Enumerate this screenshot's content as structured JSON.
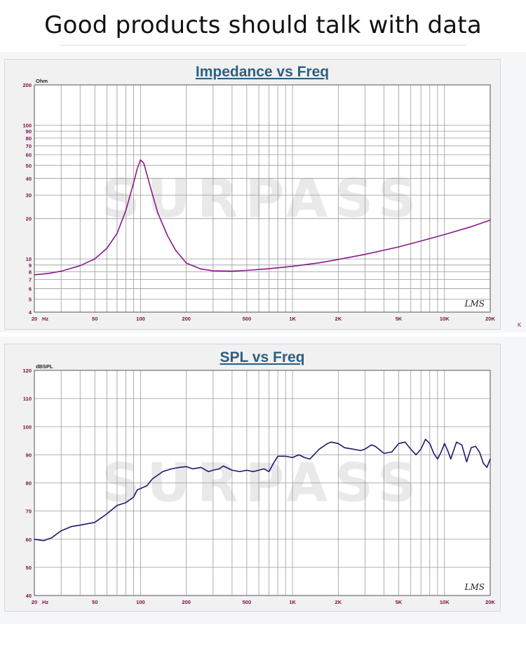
{
  "page": {
    "title": "Good products should talk with data"
  },
  "charts_meta": {
    "watermark": "SURPASS",
    "badge": "LMS",
    "stray_label": "K",
    "grid_color": "#9a9a9a",
    "axis_label_color": "#7a1040",
    "title_color": "#2f5f7f"
  },
  "chart_data": [
    {
      "type": "line",
      "title": "Impedance vs Freq",
      "ylabel": "Ohm",
      "xlabel": "Hz",
      "xscale": "log",
      "yscale": "log",
      "xlim": [
        20,
        20000
      ],
      "ylim": [
        4,
        200
      ],
      "xtick_labels": [
        {
          "v": 20,
          "t": "20"
        },
        {
          "v": 50,
          "t": "50"
        },
        {
          "v": 100,
          "t": "100"
        },
        {
          "v": 200,
          "t": "200"
        },
        {
          "v": 500,
          "t": "500"
        },
        {
          "v": 1000,
          "t": "1K"
        },
        {
          "v": 2000,
          "t": "2K"
        },
        {
          "v": 5000,
          "t": "5K"
        },
        {
          "v": 10000,
          "t": "10K"
        },
        {
          "v": 20000,
          "t": "20K"
        }
      ],
      "ytick_labels": [
        {
          "v": 200,
          "t": "200"
        },
        {
          "v": 100,
          "t": "100"
        },
        {
          "v": 90,
          "t": "90"
        },
        {
          "v": 80,
          "t": "80"
        },
        {
          "v": 70,
          "t": "70"
        },
        {
          "v": 60,
          "t": "60"
        },
        {
          "v": 50,
          "t": "50"
        },
        {
          "v": 40,
          "t": "40"
        },
        {
          "v": 30,
          "t": "30"
        },
        {
          "v": 20,
          "t": "20"
        },
        {
          "v": 10,
          "t": "10"
        },
        {
          "v": 9,
          "t": "9"
        },
        {
          "v": 8,
          "t": "8"
        },
        {
          "v": 7,
          "t": "7"
        },
        {
          "v": 6,
          "t": "6"
        },
        {
          "v": 5,
          "t": "5"
        },
        {
          "v": 4,
          "t": "4"
        }
      ],
      "grid": true,
      "series": [
        {
          "color": "#8a1a8a",
          "x": [
            20,
            25,
            30,
            40,
            50,
            60,
            70,
            80,
            90,
            95,
            100,
            105,
            110,
            120,
            130,
            150,
            170,
            200,
            250,
            300,
            400,
            500,
            700,
            1000,
            1500,
            2000,
            3000,
            5000,
            7000,
            10000,
            15000,
            20000
          ],
          "y": [
            7.6,
            7.8,
            8.1,
            8.9,
            10.0,
            12.0,
            15.5,
            23.0,
            37.0,
            47.0,
            55.0,
            52.0,
            43.0,
            30.0,
            22.0,
            15.0,
            11.6,
            9.3,
            8.4,
            8.15,
            8.1,
            8.2,
            8.45,
            8.8,
            9.35,
            9.9,
            10.8,
            12.3,
            13.6,
            15.2,
            17.4,
            19.5
          ]
        }
      ]
    },
    {
      "type": "line",
      "title": "SPL vs Freq",
      "ylabel": "dBSPL",
      "xlabel": "Hz",
      "xscale": "log",
      "xlim": [
        20,
        20000
      ],
      "ylim": [
        40,
        120
      ],
      "xtick_labels": [
        {
          "v": 20,
          "t": "20"
        },
        {
          "v": 50,
          "t": "50"
        },
        {
          "v": 100,
          "t": "100"
        },
        {
          "v": 200,
          "t": "200"
        },
        {
          "v": 500,
          "t": "500"
        },
        {
          "v": 1000,
          "t": "1K"
        },
        {
          "v": 2000,
          "t": "2K"
        },
        {
          "v": 5000,
          "t": "5K"
        },
        {
          "v": 10000,
          "t": "10K"
        },
        {
          "v": 20000,
          "t": "20K"
        }
      ],
      "ytick_labels": [
        {
          "v": 120,
          "t": "120"
        },
        {
          "v": 110,
          "t": "110"
        },
        {
          "v": 100,
          "t": "100"
        },
        {
          "v": 90,
          "t": "90"
        },
        {
          "v": 80,
          "t": "80"
        },
        {
          "v": 70,
          "t": "70"
        },
        {
          "v": 60,
          "t": "60"
        },
        {
          "v": 50,
          "t": "50"
        },
        {
          "v": 40,
          "t": "40"
        }
      ],
      "grid": true,
      "series": [
        {
          "color": "#1a1a6e",
          "x": [
            20,
            23,
            26,
            30,
            35,
            40,
            50,
            60,
            70,
            80,
            90,
            95,
            100,
            110,
            120,
            140,
            160,
            180,
            200,
            220,
            250,
            280,
            300,
            330,
            350,
            400,
            450,
            500,
            550,
            600,
            650,
            700,
            750,
            800,
            900,
            1000,
            1100,
            1200,
            1300,
            1500,
            1700,
            1800,
            2000,
            2200,
            2500,
            2800,
            3000,
            3300,
            3500,
            4000,
            4500,
            5000,
            5500,
            6000,
            6500,
            7000,
            7500,
            8000,
            8500,
            9000,
            9500,
            10000,
            10500,
            11000,
            12000,
            13000,
            14000,
            15000,
            16000,
            17000,
            18000,
            19000,
            20000
          ],
          "y": [
            60,
            59.5,
            60.5,
            63,
            64.5,
            65,
            66,
            69,
            72,
            73,
            75,
            77.5,
            78,
            79,
            81.5,
            84,
            85,
            85.5,
            85.8,
            85,
            85.5,
            84,
            84.5,
            85,
            86,
            84.5,
            84,
            84.5,
            84,
            84.5,
            85,
            84,
            87,
            89.5,
            89.5,
            89,
            90,
            89,
            88.5,
            92,
            94,
            94.5,
            94,
            92.5,
            92,
            91.5,
            92,
            93.5,
            93,
            90.5,
            91,
            94,
            94.5,
            92,
            90,
            92,
            95.5,
            94,
            90.5,
            88.5,
            91,
            94,
            91.5,
            88.5,
            94.5,
            93.5,
            87.5,
            92.5,
            93,
            91,
            87,
            85.5,
            88.5
          ]
        }
      ]
    }
  ]
}
